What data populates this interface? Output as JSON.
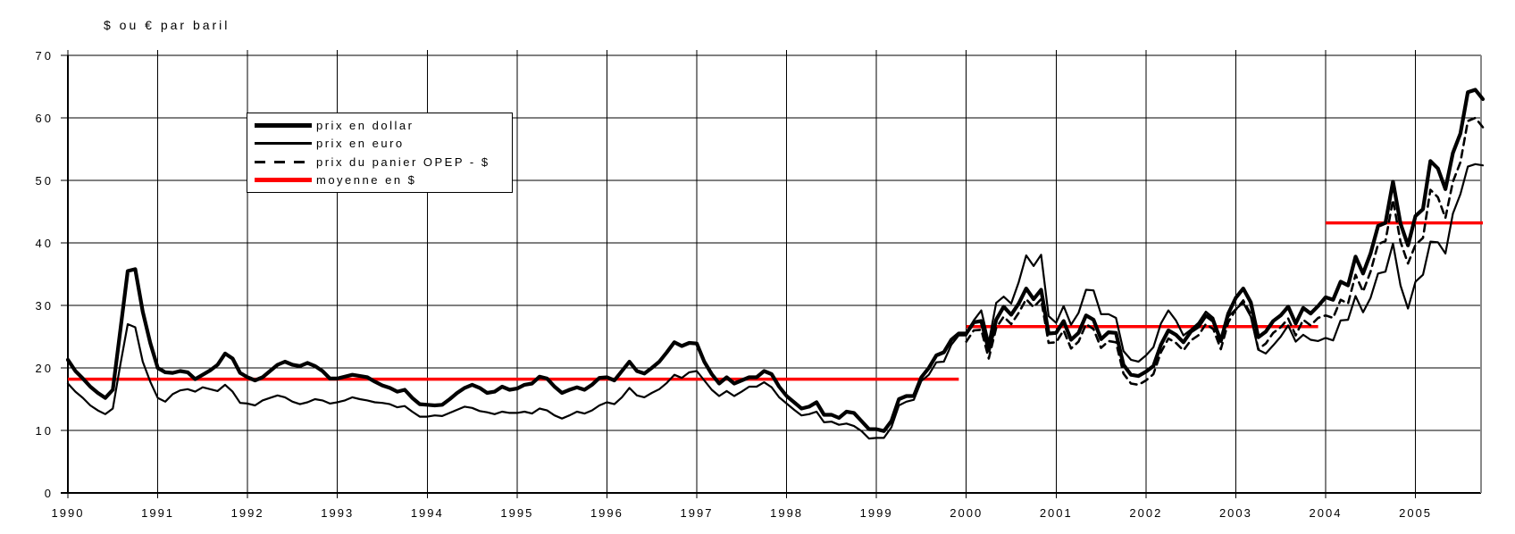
{
  "title": "$ ou € par baril",
  "colors": {
    "line": "#000000",
    "mean": "#ff0000",
    "grid": "#000000",
    "plot_right_border": "#888888",
    "background": "#ffffff"
  },
  "legend": {
    "entries": [
      {
        "label": "prix en dollar",
        "style": "thick-solid",
        "color": "#000000"
      },
      {
        "label": "prix en euro",
        "style": "thin-solid",
        "color": "#000000"
      },
      {
        "label": "prix du panier OPEP - $",
        "style": "dashed",
        "color": "#000000"
      },
      {
        "label": "moyenne en $",
        "style": "solid-red",
        "color": "#ff0000"
      }
    ]
  },
  "chart_data": {
    "type": "line",
    "title": "$ ou € par baril",
    "xlabel": "",
    "ylabel": "$ ou € par baril",
    "x_start": {
      "year": 1990,
      "month": 1
    },
    "x_end": {
      "year": 2005,
      "month": 10
    },
    "x_tick_years": [
      1990,
      1991,
      1992,
      1993,
      1994,
      1995,
      1996,
      1997,
      1998,
      1999,
      2000,
      2001,
      2002,
      2003,
      2004,
      2005
    ],
    "ylim": [
      0,
      70
    ],
    "y_ticks": [
      0,
      10,
      20,
      30,
      40,
      50,
      60,
      70
    ],
    "grid": true,
    "legend_position": "top-left-inset",
    "series": [
      {
        "name": "prix en dollar",
        "style": "thick-solid",
        "start_month_index": 0,
        "values": [
          21.3,
          19.5,
          18.3,
          17.0,
          16.0,
          15.2,
          16.5,
          26.0,
          35.5,
          35.8,
          29.0,
          24.0,
          20.0,
          19.3,
          19.2,
          19.5,
          19.3,
          18.2,
          18.9,
          19.6,
          20.5,
          22.3,
          21.5,
          19.2,
          18.5,
          18.0,
          18.5,
          19.5,
          20.5,
          21.0,
          20.5,
          20.3,
          20.8,
          20.3,
          19.5,
          18.3,
          18.3,
          18.6,
          18.9,
          18.7,
          18.5,
          17.8,
          17.2,
          16.8,
          16.2,
          16.5,
          15.2,
          14.2,
          14.1,
          14.0,
          14.1,
          15.0,
          16.0,
          16.8,
          17.3,
          16.8,
          16.0,
          16.2,
          17.0,
          16.5,
          16.7,
          17.3,
          17.5,
          18.6,
          18.3,
          17.0,
          16.0,
          16.5,
          16.9,
          16.5,
          17.3,
          18.4,
          18.5,
          18.0,
          19.5,
          21.0,
          19.5,
          19.1,
          20.0,
          21.0,
          22.5,
          24.1,
          23.5,
          24.0,
          23.9,
          21.0,
          19.0,
          17.5,
          18.5,
          17.5,
          18.0,
          18.5,
          18.5,
          19.5,
          19.0,
          17.0,
          15.5,
          14.5,
          13.5,
          13.8,
          14.5,
          12.5,
          12.5,
          12.0,
          13.0,
          12.8,
          11.5,
          10.2,
          10.2,
          9.9,
          11.5,
          15.0,
          15.5,
          15.5,
          18.5,
          20.0,
          22.0,
          22.5,
          24.5,
          25.5,
          25.5,
          27.3,
          27.5,
          22.8,
          27.7,
          29.8,
          28.5,
          30.3,
          32.7,
          31.0,
          32.5,
          25.5,
          25.6,
          27.5,
          24.5,
          25.6,
          28.4,
          27.7,
          24.6,
          25.7,
          25.6,
          20.5,
          18.9,
          18.7,
          19.4,
          20.3,
          23.7,
          26.0,
          25.3,
          24.1,
          25.8,
          26.6,
          28.4,
          27.5,
          24.3,
          28.7,
          31.2,
          32.7,
          30.5,
          24.9,
          25.8,
          27.5,
          28.4,
          29.8,
          27.1,
          29.6,
          28.7,
          29.9,
          31.3,
          30.9,
          33.8,
          33.2,
          37.8,
          35.1,
          38.3,
          42.7,
          43.2,
          49.8,
          43.1,
          39.6,
          44.3,
          45.4,
          53.1,
          51.9,
          48.6,
          54.4,
          57.5,
          64.1,
          64.5,
          63.0
        ]
      },
      {
        "name": "prix en euro",
        "style": "thin-solid",
        "start_month_index": 0,
        "values": [
          17.5,
          16.2,
          15.2,
          14.0,
          13.2,
          12.6,
          13.5,
          20.5,
          27.0,
          26.5,
          21.0,
          17.8,
          15.2,
          14.6,
          15.8,
          16.4,
          16.6,
          16.2,
          16.9,
          16.6,
          16.3,
          17.3,
          16.2,
          14.4,
          14.3,
          14.0,
          14.8,
          15.2,
          15.6,
          15.3,
          14.6,
          14.2,
          14.5,
          15.0,
          14.8,
          14.3,
          14.5,
          14.8,
          15.3,
          15.0,
          14.8,
          14.5,
          14.4,
          14.2,
          13.7,
          13.9,
          13.0,
          12.2,
          12.2,
          12.4,
          12.3,
          12.8,
          13.3,
          13.8,
          13.6,
          13.1,
          12.9,
          12.6,
          13.0,
          12.8,
          12.8,
          13.0,
          12.7,
          13.5,
          13.2,
          12.4,
          11.9,
          12.4,
          13.0,
          12.7,
          13.2,
          14.0,
          14.5,
          14.2,
          15.3,
          16.8,
          15.6,
          15.3,
          16.0,
          16.6,
          17.6,
          18.9,
          18.4,
          19.3,
          19.5,
          18.0,
          16.5,
          15.5,
          16.3,
          15.5,
          16.2,
          17.0,
          17.0,
          17.7,
          16.9,
          15.3,
          14.3,
          13.3,
          12.4,
          12.6,
          13.0,
          11.3,
          11.4,
          10.9,
          11.1,
          10.7,
          9.9,
          8.7,
          8.8,
          8.8,
          10.5,
          14.0,
          14.6,
          14.9,
          17.9,
          18.9,
          20.9,
          21.0,
          23.7,
          25.2,
          25.2,
          27.6,
          29.2,
          24.1,
          30.4,
          31.4,
          30.3,
          33.7,
          38.0,
          36.3,
          38.1,
          28.3,
          27.2,
          29.9,
          26.9,
          28.8,
          32.5,
          32.4,
          28.6,
          28.6,
          28.0,
          22.7,
          21.3,
          21.0,
          22.0,
          23.3,
          27.1,
          29.2,
          27.6,
          25.2,
          26.1,
          27.2,
          29.0,
          28.0,
          24.3,
          28.2,
          29.4,
          30.4,
          28.2,
          22.9,
          22.3,
          23.6,
          25.0,
          26.8,
          24.2,
          25.3,
          24.5,
          24.3,
          24.8,
          24.4,
          27.6,
          27.7,
          31.5,
          28.9,
          31.2,
          35.1,
          35.4,
          39.9,
          33.2,
          29.5,
          33.8,
          34.9,
          40.2,
          40.1,
          38.3,
          44.7,
          47.8,
          52.2,
          52.6,
          52.4
        ]
      },
      {
        "name": "prix du panier OPEP - $",
        "style": "dashed",
        "start_month_index": 120,
        "values": [
          24.2,
          26.0,
          26.1,
          21.5,
          26.4,
          28.2,
          27.0,
          28.8,
          31.0,
          29.7,
          31.0,
          24.0,
          24.1,
          26.0,
          23.1,
          24.2,
          27.0,
          26.2,
          23.2,
          24.3,
          24.1,
          19.1,
          17.5,
          17.3,
          18.0,
          19.0,
          22.5,
          24.7,
          24.0,
          22.8,
          24.4,
          25.2,
          27.0,
          26.2,
          23.0,
          27.3,
          29.3,
          30.8,
          28.6,
          23.0,
          23.9,
          25.6,
          26.5,
          27.9,
          25.2,
          27.7,
          26.8,
          28.0,
          28.4,
          28.0,
          30.9,
          30.3,
          34.9,
          32.2,
          35.4,
          39.8,
          40.3,
          46.9,
          40.2,
          36.7,
          39.7,
          40.8,
          48.5,
          47.3,
          44.0,
          49.8,
          52.9,
          59.5,
          60.0,
          58.5
        ]
      }
    ],
    "mean_segments": [
      {
        "name": "moyenne en $",
        "value": 18.2,
        "from": "1990-01",
        "to": "1999-12"
      },
      {
        "name": "moyenne en $",
        "value": 26.6,
        "from": "2000-01",
        "to": "2003-12"
      },
      {
        "name": "moyenne en $",
        "value": 43.2,
        "from": "2004-01",
        "to": "2005-10"
      }
    ]
  }
}
